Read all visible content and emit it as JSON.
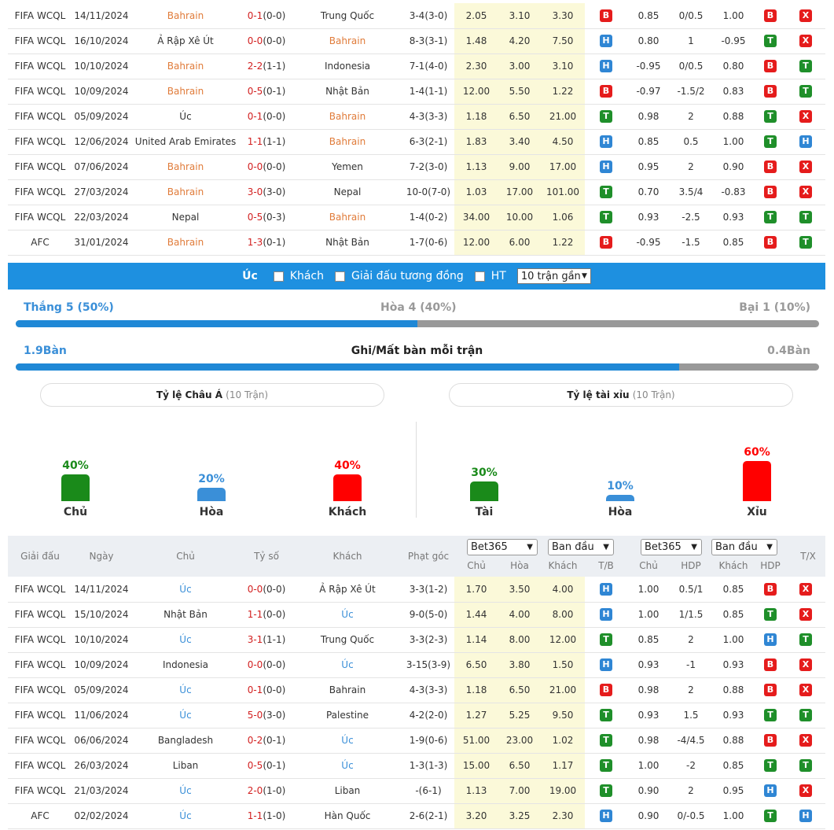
{
  "top_rows": [
    {
      "league": "FIFA WCQL",
      "date": "14/11/2024",
      "home": "Bahrain",
      "score": "0-1",
      "ht": "(0-0)",
      "away": "Trung Quốc",
      "corner": "3-4(3-0)",
      "o1": "2.05",
      "o2": "3.10",
      "o3": "3.30",
      "tb": "B",
      "h1": "0.85",
      "h2": "0/0.5",
      "h3": "1.00",
      "hdp": "B",
      "tx": "X",
      "hl": "home"
    },
    {
      "league": "FIFA WCQL",
      "date": "16/10/2024",
      "home": "Ả Rập Xê Út",
      "score": "0-0",
      "ht": "(0-0)",
      "away": "Bahrain",
      "corner": "8-3(3-1)",
      "o1": "1.48",
      "o2": "4.20",
      "o3": "7.50",
      "tb": "H",
      "h1": "0.80",
      "h2": "1",
      "h3": "-0.95",
      "hdp": "T",
      "tx": "X",
      "hl": "away"
    },
    {
      "league": "FIFA WCQL",
      "date": "10/10/2024",
      "home": "Bahrain",
      "score": "2-2",
      "ht": "(1-1)",
      "away": "Indonesia",
      "corner": "7-1(4-0)",
      "o1": "2.30",
      "o2": "3.00",
      "o3": "3.10",
      "tb": "H",
      "h1": "-0.95",
      "h2": "0/0.5",
      "h3": "0.80",
      "hdp": "B",
      "tx": "T",
      "hl": "home"
    },
    {
      "league": "FIFA WCQL",
      "date": "10/09/2024",
      "home": "Bahrain",
      "score": "0-5",
      "ht": "(0-1)",
      "away": "Nhật Bản",
      "corner": "1-4(1-1)",
      "o1": "12.00",
      "o2": "5.50",
      "o3": "1.22",
      "tb": "B",
      "h1": "-0.97",
      "h2": "-1.5/2",
      "h3": "0.83",
      "hdp": "B",
      "tx": "T",
      "hl": "home"
    },
    {
      "league": "FIFA WCQL",
      "date": "05/09/2024",
      "home": "Úc",
      "score": "0-1",
      "ht": "(0-0)",
      "away": "Bahrain",
      "corner": "4-3(3-3)",
      "o1": "1.18",
      "o2": "6.50",
      "o3": "21.00",
      "tb": "T",
      "h1": "0.98",
      "h2": "2",
      "h3": "0.88",
      "hdp": "T",
      "tx": "X",
      "hl": "away"
    },
    {
      "league": "FIFA WCQL",
      "date": "12/06/2024",
      "home": "United Arab Emirates",
      "score": "1-1",
      "ht": "(1-1)",
      "away": "Bahrain",
      "corner": "6-3(2-1)",
      "o1": "1.83",
      "o2": "3.40",
      "o3": "4.50",
      "tb": "H",
      "h1": "0.85",
      "h2": "0.5",
      "h3": "1.00",
      "hdp": "T",
      "tx": "H",
      "hl": "away"
    },
    {
      "league": "FIFA WCQL",
      "date": "07/06/2024",
      "home": "Bahrain",
      "score": "0-0",
      "ht": "(0-0)",
      "away": "Yemen",
      "corner": "7-2(3-0)",
      "o1": "1.13",
      "o2": "9.00",
      "o3": "17.00",
      "tb": "H",
      "h1": "0.95",
      "h2": "2",
      "h3": "0.90",
      "hdp": "B",
      "tx": "X",
      "hl": "home"
    },
    {
      "league": "FIFA WCQL",
      "date": "27/03/2024",
      "home": "Bahrain",
      "score": "3-0",
      "ht": "(3-0)",
      "away": "Nepal",
      "corner": "10-0(7-0)",
      "o1": "1.03",
      "o2": "17.00",
      "o3": "101.00",
      "tb": "T",
      "h1": "0.70",
      "h2": "3.5/4",
      "h3": "-0.83",
      "hdp": "B",
      "tx": "X",
      "hl": "home"
    },
    {
      "league": "FIFA WCQL",
      "date": "22/03/2024",
      "home": "Nepal",
      "score": "0-5",
      "ht": "(0-3)",
      "away": "Bahrain",
      "corner": "1-4(0-2)",
      "o1": "34.00",
      "o2": "10.00",
      "o3": "1.06",
      "tb": "T",
      "h1": "0.93",
      "h2": "-2.5",
      "h3": "0.93",
      "hdp": "T",
      "tx": "T",
      "hl": "away"
    },
    {
      "league": "AFC",
      "date": "31/01/2024",
      "home": "Bahrain",
      "score": "1-3",
      "ht": "(0-1)",
      "away": "Nhật Bản",
      "corner": "1-7(0-6)",
      "o1": "12.00",
      "o2": "6.00",
      "o3": "1.22",
      "tb": "B",
      "h1": "-0.95",
      "h2": "-1.5",
      "h3": "0.85",
      "hdp": "B",
      "tx": "T",
      "hl": "home"
    }
  ],
  "filter": {
    "team": "Úc",
    "away_label": "Khách",
    "same_league_label": "Giải đấu tương đồng",
    "ht_label": "HT",
    "recent_select": "10 trận gần"
  },
  "summary": {
    "win": "Thắng 5 (50%)",
    "draw": "Hòa 4 (40%)",
    "loss": "Bại 1 (10%)",
    "win_pct": 50,
    "draw_pct": 40,
    "loss_pct": 10,
    "scored": "1.9Bàn",
    "goals_title": "Ghi/Mất bàn mỗi trận",
    "conceded": "0.4Bàn",
    "scored_value": 1.9,
    "conceded_value": 0.4
  },
  "asian": {
    "title": "Tỷ lệ Châu Á",
    "sub": "(10 Trận)",
    "items": [
      {
        "pct": "40%",
        "label": "Chủ",
        "value": 40,
        "color": "#1a8a1a"
      },
      {
        "pct": "20%",
        "label": "Hòa",
        "value": 20,
        "color": "#3a8fd8"
      },
      {
        "pct": "40%",
        "label": "Khách",
        "value": 40,
        "color": "#ff0000"
      }
    ]
  },
  "ou": {
    "title": "Tỷ lệ tài xỉu",
    "sub": "(10 Trận)",
    "items": [
      {
        "pct": "30%",
        "label": "Tài",
        "value": 30,
        "color": "#1a8a1a"
      },
      {
        "pct": "10%",
        "label": "Hòa",
        "value": 10,
        "color": "#3a8fd8"
      },
      {
        "pct": "60%",
        "label": "Xỉu",
        "value": 60,
        "color": "#ff0000"
      }
    ]
  },
  "header": {
    "league": "Giải đấu",
    "date": "Ngày",
    "home": "Chủ",
    "score": "Tỷ số",
    "away": "Khách",
    "corner": "Phạt góc",
    "bookmaker1": "Bet365",
    "type1": "Ban đầu",
    "bookmaker2": "Bet365",
    "type2": "Ban đầu",
    "s_home": "Chủ",
    "s_draw": "Hòa",
    "s_away": "Khách",
    "s_tb": "T/B",
    "s_h1": "Chủ",
    "s_hdp": "HDP",
    "s_away2": "Khách",
    "s_hdp2": "HDP",
    "tx": "T/X"
  },
  "bottom_rows": [
    {
      "league": "FIFA WCQL",
      "date": "14/11/2024",
      "home": "Úc",
      "score": "0-0",
      "ht": "(0-0)",
      "away": "Ả Rập Xê Út",
      "corner": "3-3(1-2)",
      "o1": "1.70",
      "o2": "3.50",
      "o3": "4.00",
      "tb": "H",
      "h1": "1.00",
      "h2": "0.5/1",
      "h3": "0.85",
      "hdp": "B",
      "tx": "X",
      "hl": "home"
    },
    {
      "league": "FIFA WCQL",
      "date": "15/10/2024",
      "home": "Nhật Bản",
      "score": "1-1",
      "ht": "(0-0)",
      "away": "Úc",
      "corner": "9-0(5-0)",
      "o1": "1.44",
      "o2": "4.00",
      "o3": "8.00",
      "tb": "H",
      "h1": "1.00",
      "h2": "1/1.5",
      "h3": "0.85",
      "hdp": "T",
      "tx": "X",
      "hl": "away"
    },
    {
      "league": "FIFA WCQL",
      "date": "10/10/2024",
      "home": "Úc",
      "score": "3-1",
      "ht": "(1-1)",
      "away": "Trung Quốc",
      "corner": "3-3(2-3)",
      "o1": "1.14",
      "o2": "8.00",
      "o3": "12.00",
      "tb": "T",
      "h1": "0.85",
      "h2": "2",
      "h3": "1.00",
      "hdp": "H",
      "tx": "T",
      "hl": "home"
    },
    {
      "league": "FIFA WCQL",
      "date": "10/09/2024",
      "home": "Indonesia",
      "score": "0-0",
      "ht": "(0-0)",
      "away": "Úc",
      "corner": "3-15(3-9)",
      "o1": "6.50",
      "o2": "3.80",
      "o3": "1.50",
      "tb": "H",
      "h1": "0.93",
      "h2": "-1",
      "h3": "0.93",
      "hdp": "B",
      "tx": "X",
      "hl": "away"
    },
    {
      "league": "FIFA WCQL",
      "date": "05/09/2024",
      "home": "Úc",
      "score": "0-1",
      "ht": "(0-0)",
      "away": "Bahrain",
      "corner": "4-3(3-3)",
      "o1": "1.18",
      "o2": "6.50",
      "o3": "21.00",
      "tb": "B",
      "h1": "0.98",
      "h2": "2",
      "h3": "0.88",
      "hdp": "B",
      "tx": "X",
      "hl": "home"
    },
    {
      "league": "FIFA WCQL",
      "date": "11/06/2024",
      "home": "Úc",
      "score": "5-0",
      "ht": "(3-0)",
      "away": "Palestine",
      "corner": "4-2(2-0)",
      "o1": "1.27",
      "o2": "5.25",
      "o3": "9.50",
      "tb": "T",
      "h1": "0.93",
      "h2": "1.5",
      "h3": "0.93",
      "hdp": "T",
      "tx": "T",
      "hl": "home"
    },
    {
      "league": "FIFA WCQL",
      "date": "06/06/2024",
      "home": "Bangladesh",
      "score": "0-2",
      "ht": "(0-1)",
      "away": "Úc",
      "corner": "1-9(0-6)",
      "o1": "51.00",
      "o2": "23.00",
      "o3": "1.02",
      "tb": "T",
      "h1": "0.98",
      "h2": "-4/4.5",
      "h3": "0.88",
      "hdp": "B",
      "tx": "X",
      "hl": "away"
    },
    {
      "league": "FIFA WCQL",
      "date": "26/03/2024",
      "home": "Liban",
      "score": "0-5",
      "ht": "(0-1)",
      "away": "Úc",
      "corner": "1-3(1-3)",
      "o1": "15.00",
      "o2": "6.50",
      "o3": "1.17",
      "tb": "T",
      "h1": "1.00",
      "h2": "-2",
      "h3": "0.85",
      "hdp": "T",
      "tx": "T",
      "hl": "away"
    },
    {
      "league": "FIFA WCQL",
      "date": "21/03/2024",
      "home": "Úc",
      "score": "2-0",
      "ht": "(1-0)",
      "away": "Liban",
      "corner": "-(6-1)",
      "o1": "1.13",
      "o2": "7.00",
      "o3": "19.00",
      "tb": "T",
      "h1": "0.90",
      "h2": "2",
      "h3": "0.95",
      "hdp": "H",
      "tx": "X",
      "hl": "home"
    },
    {
      "league": "AFC",
      "date": "02/02/2024",
      "home": "Úc",
      "score": "1-1",
      "ht": "(1-0)",
      "away": "Hàn Quốc",
      "corner": "2-6(2-1)",
      "o1": "3.20",
      "o2": "3.25",
      "o3": "2.30",
      "tb": "H",
      "h1": "0.90",
      "h2": "0/-0.5",
      "h3": "1.00",
      "hdp": "T",
      "tx": "H",
      "hl": "home"
    }
  ]
}
